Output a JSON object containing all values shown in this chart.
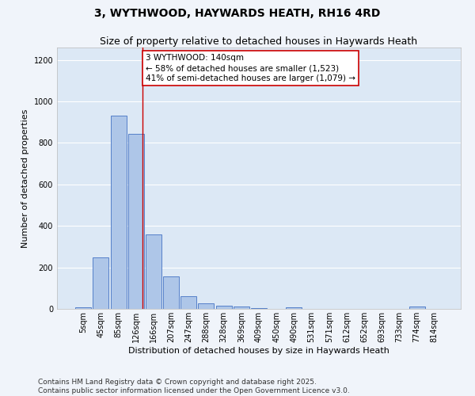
{
  "title": "3, WYTHWOOD, HAYWARDS HEATH, RH16 4RD",
  "subtitle": "Size of property relative to detached houses in Haywards Heath",
  "xlabel": "Distribution of detached houses by size in Haywards Heath",
  "ylabel": "Number of detached properties",
  "bin_labels": [
    "5sqm",
    "45sqm",
    "85sqm",
    "126sqm",
    "166sqm",
    "207sqm",
    "247sqm",
    "288sqm",
    "328sqm",
    "369sqm",
    "409sqm",
    "450sqm",
    "490sqm",
    "531sqm",
    "571sqm",
    "612sqm",
    "652sqm",
    "693sqm",
    "733sqm",
    "774sqm",
    "814sqm"
  ],
  "bar_values": [
    8,
    248,
    930,
    845,
    360,
    158,
    62,
    28,
    14,
    10,
    4,
    0,
    7,
    0,
    0,
    0,
    0,
    0,
    0,
    10,
    0
  ],
  "bar_color": "#aec6e8",
  "bar_edgecolor": "#4472c4",
  "background_color": "#dce8f5",
  "fig_background_color": "#f0f4fa",
  "grid_color": "#ffffff",
  "marker_label": "3 WYTHWOOD: 140sqm",
  "annotation_line1": "← 58% of detached houses are smaller (1,523)",
  "annotation_line2": "41% of semi-detached houses are larger (1,079) →",
  "annotation_box_color": "#ffffff",
  "annotation_box_edgecolor": "#cc0000",
  "marker_line_color": "#cc0000",
  "ylim": [
    0,
    1260
  ],
  "yticks": [
    0,
    200,
    400,
    600,
    800,
    1000,
    1200
  ],
  "title_fontsize": 10,
  "subtitle_fontsize": 9,
  "axis_label_fontsize": 8,
  "tick_fontsize": 7,
  "annotation_fontsize": 7.5,
  "footer_fontsize": 6.5,
  "footer_line1": "Contains HM Land Registry data © Crown copyright and database right 2025.",
  "footer_line2": "Contains public sector information licensed under the Open Government Licence v3.0."
}
